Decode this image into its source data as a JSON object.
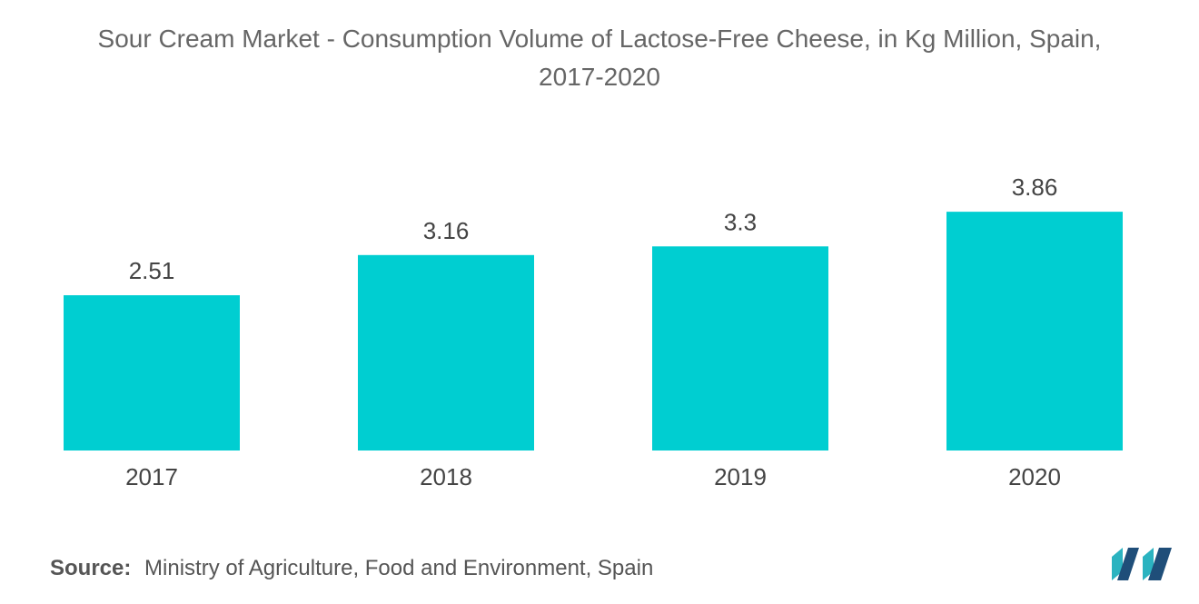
{
  "chart_data": {
    "type": "bar",
    "title_line1": "Sour Cream Market - Consumption Volume of Lactose-Free Cheese, in Kg Million, Spain,",
    "title_line2": "2017-2020",
    "categories": [
      "2017",
      "2018",
      "2019",
      "2020"
    ],
    "values": [
      2.51,
      3.16,
      3.3,
      3.86
    ],
    "value_labels": [
      "2.51",
      "3.16",
      "3.3",
      "3.86"
    ],
    "xlabel": "",
    "ylabel": "",
    "ylim": [
      0,
      4
    ],
    "grid": false,
    "bar_color": "#00CED1"
  },
  "source": {
    "label": "Source:",
    "text": "Ministry of Agriculture, Food and Environment, Spain"
  },
  "colors": {
    "logo_dark": "#1f4e79",
    "logo_light": "#2bb3c0"
  },
  "logo": {
    "icon": "mordor-intelligence-logo-icon"
  }
}
